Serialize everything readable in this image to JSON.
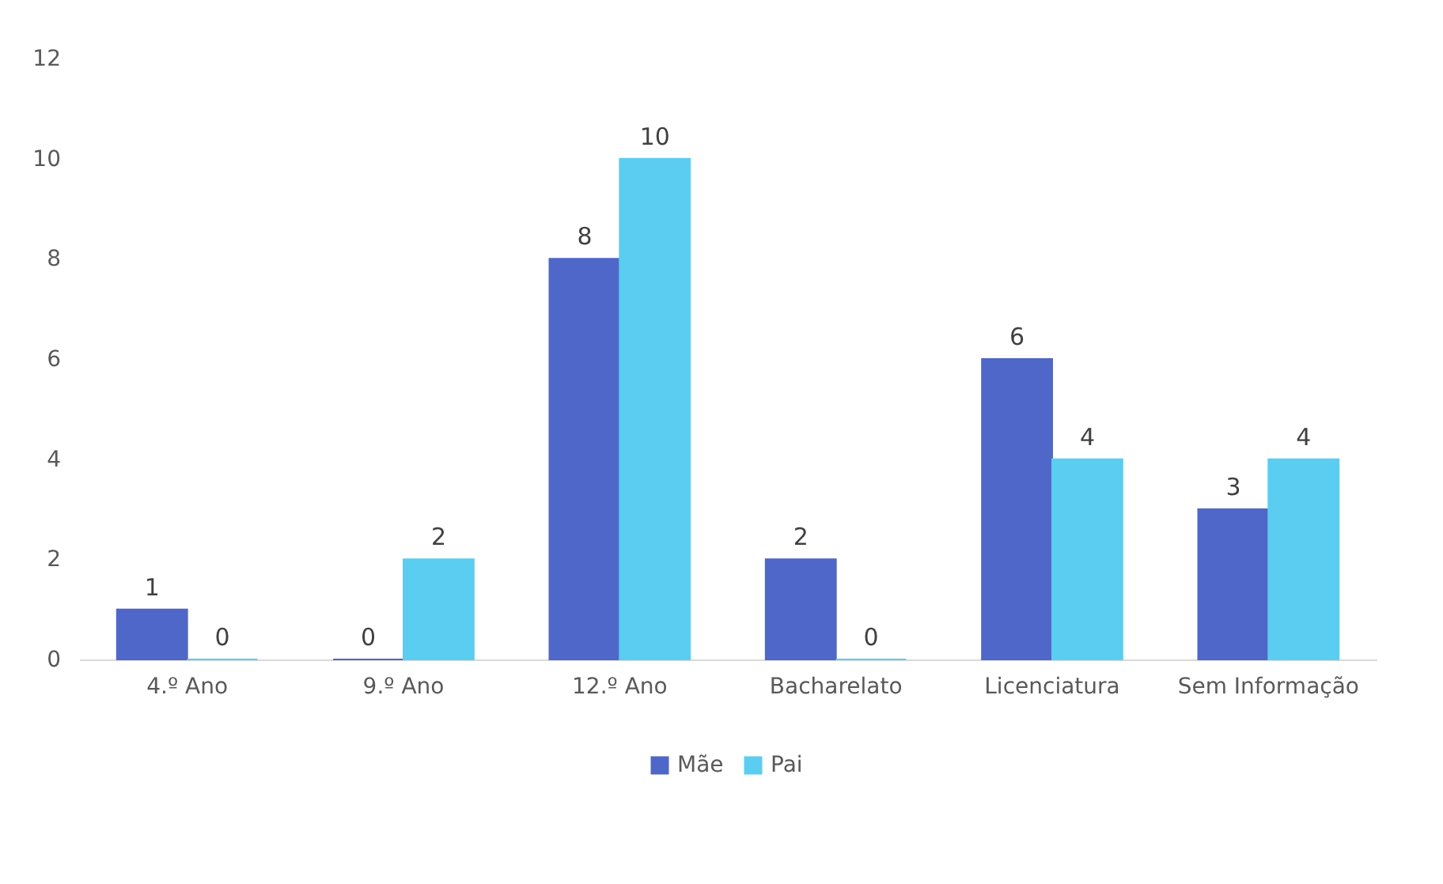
{
  "chart_data": {
    "type": "bar",
    "categories": [
      "4.º Ano",
      "9.º Ano",
      "12.º Ano",
      "Bacharelato",
      "Licenciatura",
      "Sem Informação"
    ],
    "series": [
      {
        "name": "Mãe",
        "color": "#4f67c8",
        "values": [
          1,
          0,
          8,
          2,
          6,
          3
        ]
      },
      {
        "name": "Pai",
        "color": "#5bcdf0",
        "values": [
          0,
          2,
          10,
          0,
          4,
          4
        ]
      }
    ],
    "ylim": [
      0,
      12
    ],
    "yticks": [
      0,
      2,
      4,
      6,
      8,
      10,
      12
    ],
    "grid": false,
    "legend": "bottom",
    "data_labels": true
  }
}
